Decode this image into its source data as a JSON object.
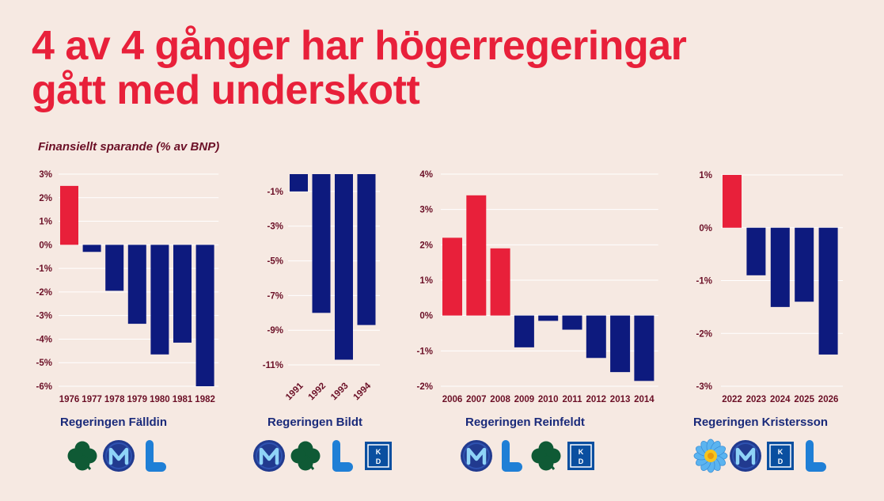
{
  "title": {
    "line1": "4 av 4 gånger har högerregeringar",
    "line2": "gått med underskott"
  },
  "subtitle": "Finansiellt sparande (% av BNP)",
  "colors": {
    "positive": "#e8203a",
    "negative": "#0d1a7e",
    "tick_text": "#6b0f26",
    "government_label": "#1a2a7a",
    "grid": "#ffffff"
  },
  "chart_data": [
    {
      "type": "bar",
      "government": "Regeringen Fälldin",
      "categories": [
        "1976",
        "1977",
        "1978",
        "1979",
        "1980",
        "1981",
        "1982"
      ],
      "values": [
        2.5,
        -0.3,
        -1.95,
        -3.35,
        -4.65,
        -4.15,
        -6.0
      ],
      "ylim": [
        -6,
        3
      ],
      "yticks": [
        3,
        2,
        1,
        0,
        -1,
        -2,
        -3,
        -4,
        -5,
        -6
      ],
      "ytick_labels": [
        "3%",
        "2%",
        "1%",
        "0%",
        "-1%",
        "-2%",
        "-3%",
        "-4%",
        "-5%",
        "-6%"
      ],
      "logos": [
        "centerpartiet-clover-icon",
        "moderaterna-m-icon",
        "liberalerna-l-icon"
      ]
    },
    {
      "type": "bar",
      "government": "Regeringen Bildt",
      "categories": [
        "1991",
        "1992",
        "1993",
        "1994"
      ],
      "values": [
        -1.0,
        -8.0,
        -10.7,
        -8.7
      ],
      "ylim": [
        -11.5,
        0
      ],
      "yticks": [
        -1,
        -3,
        -5,
        -7,
        -9,
        -11
      ],
      "ytick_labels": [
        "-1%",
        "-3%",
        "-5%",
        "-7%",
        "-9%",
        "-11%"
      ],
      "logos": [
        "moderaterna-m-icon",
        "centerpartiet-clover-icon",
        "liberalerna-l-icon",
        "kristdemokraterna-kd-icon"
      ]
    },
    {
      "type": "bar",
      "government": "Regeringen Reinfeldt",
      "categories": [
        "2006",
        "2007",
        "2008",
        "2009",
        "2010",
        "2011",
        "2012",
        "2013",
        "2014"
      ],
      "values": [
        2.2,
        3.4,
        1.9,
        -0.9,
        -0.15,
        -0.4,
        -1.2,
        -1.6,
        -1.85
      ],
      "ylim": [
        -2,
        4
      ],
      "yticks": [
        4,
        3,
        2,
        1,
        0,
        -1,
        -2
      ],
      "ytick_labels": [
        "4%",
        "3%",
        "2%",
        "1%",
        "0%",
        "-1%",
        "-2%"
      ],
      "logos": [
        "moderaterna-m-icon",
        "liberalerna-l-icon",
        "centerpartiet-clover-icon",
        "kristdemokraterna-kd-icon"
      ]
    },
    {
      "type": "bar",
      "government": "Regeringen Kristersson",
      "categories": [
        "2022",
        "2023",
        "2024",
        "2025",
        "2026"
      ],
      "values": [
        1.0,
        -0.9,
        -1.5,
        -1.4,
        -2.4
      ],
      "ylim": [
        -3,
        1
      ],
      "yticks": [
        1,
        0,
        -1,
        -2,
        -3
      ],
      "ytick_labels": [
        "1%",
        "0%",
        "-1%",
        "-2%",
        "-3%"
      ],
      "logos": [
        "sverigedemokraterna-flower-icon",
        "moderaterna-m-icon",
        "kristdemokraterna-kd-icon",
        "liberalerna-l-icon"
      ]
    }
  ],
  "kd_logo_text": {
    "k": "K",
    "d": "D"
  }
}
